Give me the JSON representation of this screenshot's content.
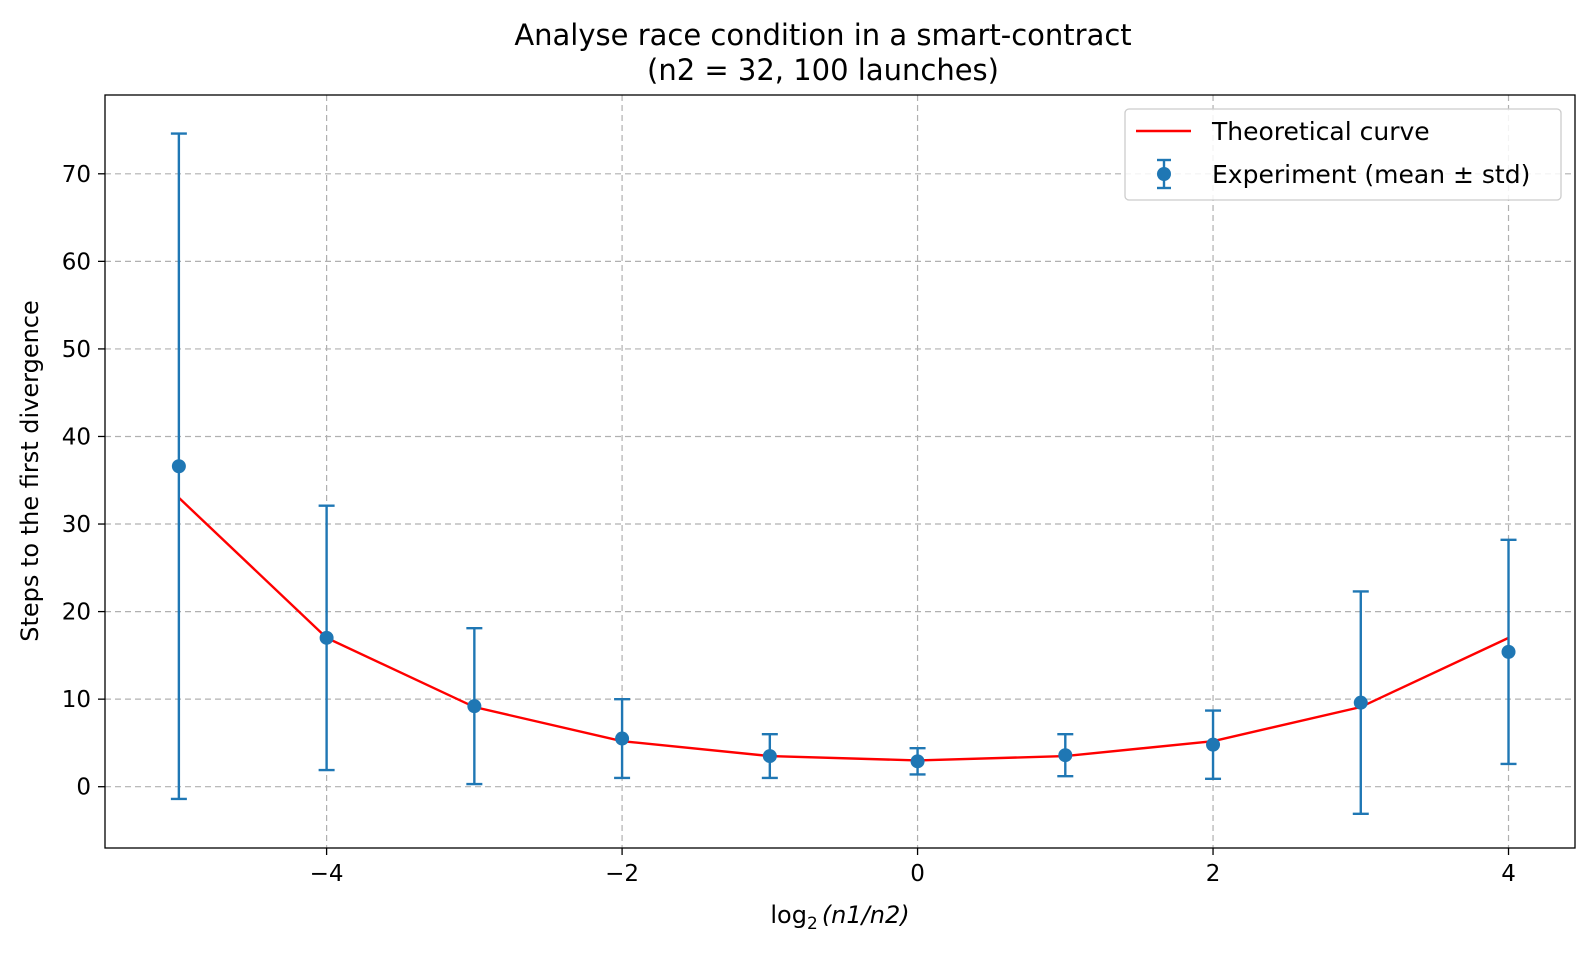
{
  "chart_data": {
    "type": "line",
    "title_line1": "Analyse race condition in a smart-contract",
    "title_line2": "(n2 = 32, 100 launches)",
    "xlabel_prefix": "log",
    "xlabel_sub": "2",
    "xlabel_expr": "(n1/n2)",
    "ylabel": "Steps to the first divergence",
    "xlim": [
      -5.5,
      4.45
    ],
    "ylim": [
      -7,
      79
    ],
    "xticks": [
      -4,
      -2,
      0,
      2,
      4
    ],
    "xtick_labels": [
      "−4",
      "−2",
      "0",
      "2",
      "4"
    ],
    "yticks": [
      0,
      10,
      20,
      30,
      40,
      50,
      60,
      70
    ],
    "ytick_labels": [
      "0",
      "10",
      "20",
      "30",
      "40",
      "50",
      "60",
      "70"
    ],
    "grid": true,
    "legend_position": "upper-right",
    "series": [
      {
        "name": "Theoretical curve",
        "kind": "line",
        "color": "#ff0000",
        "x": [
          -5,
          -4,
          -3,
          -2,
          -1,
          0,
          1,
          2,
          3,
          4
        ],
        "y": [
          33.0,
          17.0,
          9.1,
          5.2,
          3.5,
          3.0,
          3.5,
          5.2,
          9.1,
          17.0
        ]
      },
      {
        "name": "Experiment (mean ± std)",
        "kind": "errorbar",
        "color": "#1f77b4",
        "x": [
          -5,
          -4,
          -3,
          -2,
          -1,
          0,
          1,
          2,
          3,
          4
        ],
        "y": [
          36.6,
          17.0,
          9.2,
          5.5,
          3.5,
          2.9,
          3.6,
          4.8,
          9.6,
          15.4
        ],
        "err": [
          38.0,
          15.1,
          8.9,
          4.5,
          2.5,
          1.5,
          2.4,
          3.9,
          12.7,
          12.8
        ]
      }
    ]
  }
}
